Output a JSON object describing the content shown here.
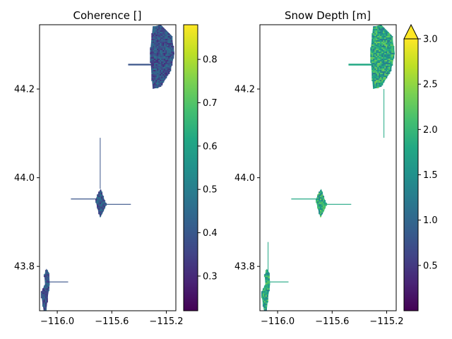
{
  "chart_data": [
    {
      "type": "heatmap",
      "title": "Coherence []",
      "xlabel": "",
      "ylabel": "",
      "xlim": [
        -116.13,
        -115.13
      ],
      "ylim": [
        43.7,
        44.345
      ],
      "xticks": [
        -116.0,
        -115.6,
        -115.2
      ],
      "xtick_labels": [
        "−116.0",
        "−115.6",
        "−115.2"
      ],
      "yticks": [
        43.8,
        44.0,
        44.2
      ],
      "ytick_labels": [
        "43.8",
        "44.0",
        "44.2"
      ],
      "colormap": "viridis",
      "colorbar": {
        "min": 0.22,
        "max": 0.88,
        "ticks": [
          0.3,
          0.4,
          0.5,
          0.6,
          0.7,
          0.8
        ],
        "tick_labels": [
          "0.3",
          "0.4",
          "0.5",
          "0.6",
          "0.7",
          "0.8"
        ],
        "extend": "none"
      },
      "value_range": [
        0.3,
        0.48
      ]
    },
    {
      "type": "heatmap",
      "title": "Snow Depth [m]",
      "xlabel": "",
      "ylabel": "",
      "xlim": [
        -116.13,
        -115.13
      ],
      "ylim": [
        43.7,
        44.345
      ],
      "xticks": [
        -116.0,
        -115.6,
        -115.2
      ],
      "xtick_labels": [
        "−116.0",
        "−115.6",
        "−115.2"
      ],
      "yticks": [
        43.8,
        44.0,
        44.2
      ],
      "ytick_labels": [
        "43.8",
        "44.0",
        "44.2"
      ],
      "colormap": "viridis",
      "colorbar": {
        "min": 0.0,
        "max": 3.0,
        "ticks": [
          0.5,
          1.0,
          1.5,
          2.0,
          2.5,
          3.0
        ],
        "tick_labels": [
          "0.5",
          "1.0",
          "1.5",
          "2.0",
          "2.5",
          "3.0"
        ],
        "extend": "max"
      },
      "value_range": [
        1.2,
        2.4
      ]
    }
  ]
}
